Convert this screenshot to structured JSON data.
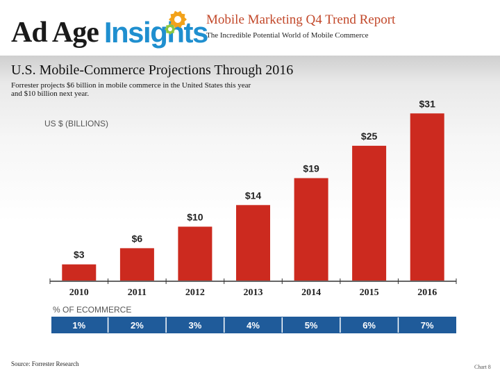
{
  "header": {
    "logo_adage": "Ad Age",
    "logo_insights": "Insights",
    "report_title": "Mobile Marketing Q4 Trend Report",
    "report_subtitle": "The Incredible Potential World of Mobile Commerce"
  },
  "slide": {
    "title": "U.S. Mobile-Commerce Projections Through 2016",
    "description": "Forrester projects $6 billion in mobile commerce in the United States this year and $10 billion next year.",
    "source": "Source: Forrester Research",
    "page": "Chart 8"
  },
  "colors": {
    "bar": "#cc2a1f",
    "table_band": "#1f5b9a",
    "logo_blue": "#1f8fcf",
    "title_accent": "#c2482a",
    "gear_orange": "#f2a21a",
    "gear_green": "#8cc63f"
  },
  "chart_data": {
    "type": "bar",
    "ylabel": "US $ (BILLIONS)",
    "categories": [
      "2010",
      "2011",
      "2012",
      "2013",
      "2014",
      "2015",
      "2016"
    ],
    "values": [
      3,
      6,
      10,
      14,
      19,
      25,
      31
    ],
    "value_labels": [
      "$3",
      "$6",
      "$10",
      "$14",
      "$19",
      "$25",
      "$31"
    ],
    "ylim": [
      0,
      34
    ],
    "grid": false,
    "secondary_table": {
      "label": "% OF ECOMMERCE",
      "values": [
        "1%",
        "2%",
        "3%",
        "4%",
        "5%",
        "6%",
        "7%"
      ]
    }
  }
}
